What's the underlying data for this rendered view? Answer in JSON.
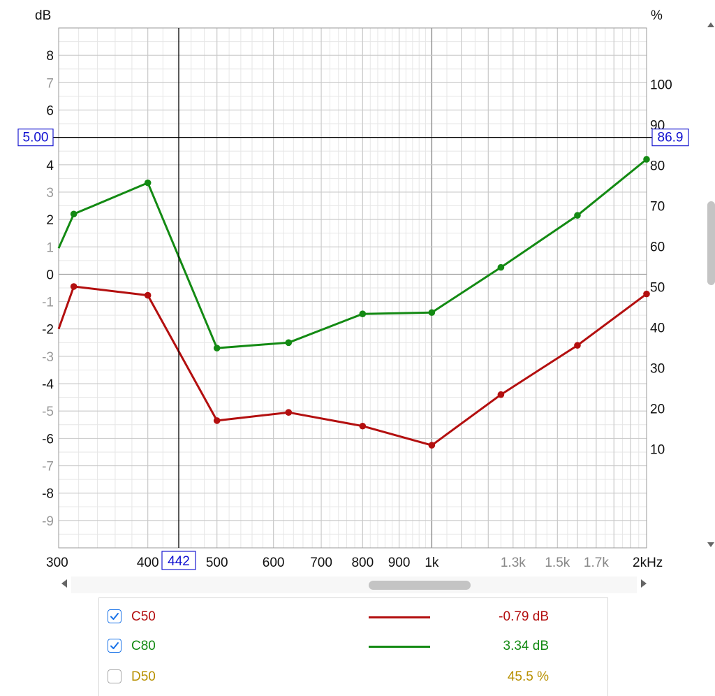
{
  "chart_data": {
    "type": "line",
    "y_left_label": "dB",
    "y_right_label": "%",
    "x_unit": "kHz",
    "x_scale": "log",
    "xlim": [
      300,
      2000
    ],
    "ylim_left": [
      -10,
      9
    ],
    "ylim_right": [
      0,
      110
    ],
    "grid": true,
    "x_ticks": [
      {
        "value": 300,
        "label": "300",
        "style": "major"
      },
      {
        "value": 400,
        "label": "400",
        "style": "major"
      },
      {
        "value": 500,
        "label": "500",
        "style": "major"
      },
      {
        "value": 600,
        "label": "600",
        "style": "major"
      },
      {
        "value": 700,
        "label": "700",
        "style": "major"
      },
      {
        "value": 800,
        "label": "800",
        "style": "major"
      },
      {
        "value": 900,
        "label": "900",
        "style": "major"
      },
      {
        "value": 1000,
        "label": "1k",
        "style": "major"
      },
      {
        "value": 1300,
        "label": "1.3k",
        "style": "minor"
      },
      {
        "value": 1500,
        "label": "1.5k",
        "style": "minor"
      },
      {
        "value": 1700,
        "label": "1.7k",
        "style": "minor"
      },
      {
        "value": 2000,
        "label": "2kHz",
        "style": "major"
      }
    ],
    "y_left_ticks": [
      {
        "value": 8,
        "label": "8"
      },
      {
        "value": 7,
        "label": "7",
        "dim": true
      },
      {
        "value": 6,
        "label": "6"
      },
      {
        "value": 5,
        "label": "5",
        "dim": true
      },
      {
        "value": 4,
        "label": "4"
      },
      {
        "value": 3,
        "label": "3",
        "dim": true
      },
      {
        "value": 2,
        "label": "2"
      },
      {
        "value": 1,
        "label": "1",
        "dim": true
      },
      {
        "value": 0,
        "label": "0"
      },
      {
        "value": -1,
        "label": "-1",
        "dim": true
      },
      {
        "value": -2,
        "label": "-2"
      },
      {
        "value": -3,
        "label": "-3",
        "dim": true
      },
      {
        "value": -4,
        "label": "-4"
      },
      {
        "value": -5,
        "label": "-5",
        "dim": true
      },
      {
        "value": -6,
        "label": "-6"
      },
      {
        "value": -7,
        "label": "-7",
        "dim": true
      },
      {
        "value": -8,
        "label": "-8"
      },
      {
        "value": -9,
        "label": "-9",
        "dim": true
      }
    ],
    "y_right_ticks": [
      {
        "value": 100,
        "label": "100"
      },
      {
        "value": 90,
        "label": "90"
      },
      {
        "value": 80,
        "label": "80"
      },
      {
        "value": 70,
        "label": "70"
      },
      {
        "value": 60,
        "label": "60"
      },
      {
        "value": 50,
        "label": "50"
      },
      {
        "value": 40,
        "label": "40"
      },
      {
        "value": 30,
        "label": "30"
      },
      {
        "value": 20,
        "label": "20"
      },
      {
        "value": 10,
        "label": "10"
      }
    ],
    "cursor": {
      "x": 442,
      "x_label": "442",
      "y": 5.0,
      "y_label": "5.00",
      "y_right_label": "86.9"
    },
    "series": [
      {
        "name": "C50",
        "color": "#b30f0f",
        "axis": "left",
        "x": [
          300,
          315,
          400,
          500,
          630,
          800,
          1000,
          1250,
          1600,
          2000
        ],
        "y": [
          -2.0,
          -0.45,
          -0.77,
          -5.35,
          -5.05,
          -5.55,
          -6.25,
          -4.4,
          -2.6,
          -0.72
        ]
      },
      {
        "name": "C80",
        "color": "#138a13",
        "axis": "left",
        "x": [
          300,
          315,
          400,
          500,
          630,
          800,
          1000,
          1250,
          1600,
          2000
        ],
        "y": [
          0.95,
          2.2,
          3.34,
          -2.7,
          -2.5,
          -1.45,
          -1.4,
          0.25,
          2.15,
          4.2
        ]
      }
    ]
  },
  "legend": {
    "items": [
      {
        "label": "C50",
        "value": "-0.79 dB",
        "color": "#b30f0f",
        "checked": true,
        "line": true
      },
      {
        "label": "C80",
        "value": "3.34 dB",
        "color": "#138a13",
        "checked": true,
        "line": true
      },
      {
        "label": "D50",
        "value": "45.5 %",
        "color": "#b89000",
        "checked": false,
        "line": false
      }
    ]
  }
}
